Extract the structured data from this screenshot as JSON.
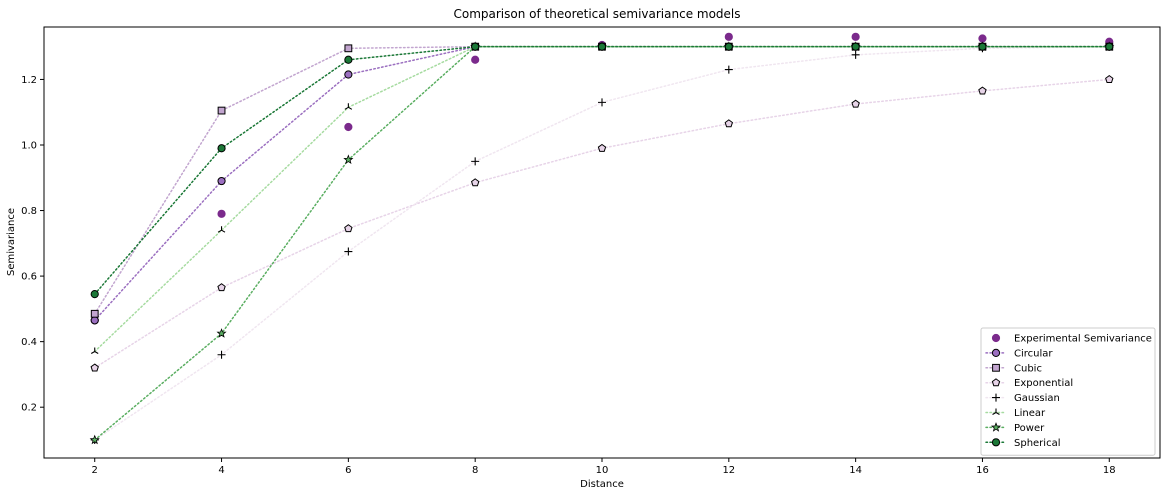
{
  "chart_data": {
    "type": "scatter",
    "title": "Comparison of theoretical semivariance models",
    "xlabel": "Distance",
    "ylabel": "Semivariance",
    "xlim": [
      1.2,
      18.8
    ],
    "ylim": [
      0.045,
      1.36
    ],
    "xticks": [
      2,
      4,
      6,
      8,
      10,
      12,
      14,
      16,
      18
    ],
    "yticks": [
      0.2,
      0.4,
      0.6,
      0.8,
      1.0,
      1.2
    ],
    "x": [
      2,
      4,
      6,
      8,
      10,
      12,
      14,
      16,
      18
    ],
    "grid": false,
    "legend_position": "lower-right",
    "series": [
      {
        "name": "Experimental Semivariance",
        "marker": "circle",
        "line": "none",
        "color": "#7b2a8c",
        "edge": "#7b2a8c",
        "values": [
          0.465,
          0.79,
          1.055,
          1.26,
          1.305,
          1.33,
          1.33,
          1.325,
          1.315
        ]
      },
      {
        "name": "Circular",
        "marker": "circle",
        "line": "dotted",
        "color": "#9b6fc0",
        "edge": "#000000",
        "values": [
          0.465,
          0.89,
          1.215,
          1.3,
          1.3,
          1.3,
          1.3,
          1.3,
          1.3
        ]
      },
      {
        "name": "Cubic",
        "marker": "square",
        "line": "dotted",
        "color": "#c2a5cf",
        "edge": "#000000",
        "values": [
          0.485,
          1.105,
          1.295,
          1.3,
          1.3,
          1.3,
          1.3,
          1.3,
          1.3
        ]
      },
      {
        "name": "Exponential",
        "marker": "pentagon",
        "line": "dotted",
        "color": "#e7d4e8",
        "edge": "#000000",
        "values": [
          0.32,
          0.565,
          0.745,
          0.885,
          0.99,
          1.065,
          1.125,
          1.165,
          1.2
        ]
      },
      {
        "name": "Gaussian",
        "marker": "plus",
        "line": "dotted",
        "color": "#f0e6f0",
        "edge": "#000000",
        "values": [
          0.1,
          0.36,
          0.675,
          0.95,
          1.13,
          1.23,
          1.275,
          1.295,
          1.3
        ]
      },
      {
        "name": "Linear",
        "marker": "tri",
        "line": "dotted",
        "color": "#a6dba0",
        "edge": "#000000",
        "values": [
          0.37,
          0.74,
          1.115,
          1.3,
          1.3,
          1.3,
          1.3,
          1.3,
          1.3
        ]
      },
      {
        "name": "Power",
        "marker": "star",
        "line": "dotted",
        "color": "#5aae61",
        "edge": "#000000",
        "values": [
          0.1,
          0.425,
          0.955,
          1.3,
          1.3,
          1.3,
          1.3,
          1.3,
          1.3
        ]
      },
      {
        "name": "Spherical",
        "marker": "circle",
        "line": "dotted",
        "color": "#1b7837",
        "edge": "#000000",
        "values": [
          0.545,
          0.99,
          1.26,
          1.3,
          1.3,
          1.3,
          1.3,
          1.3,
          1.3
        ]
      }
    ]
  }
}
